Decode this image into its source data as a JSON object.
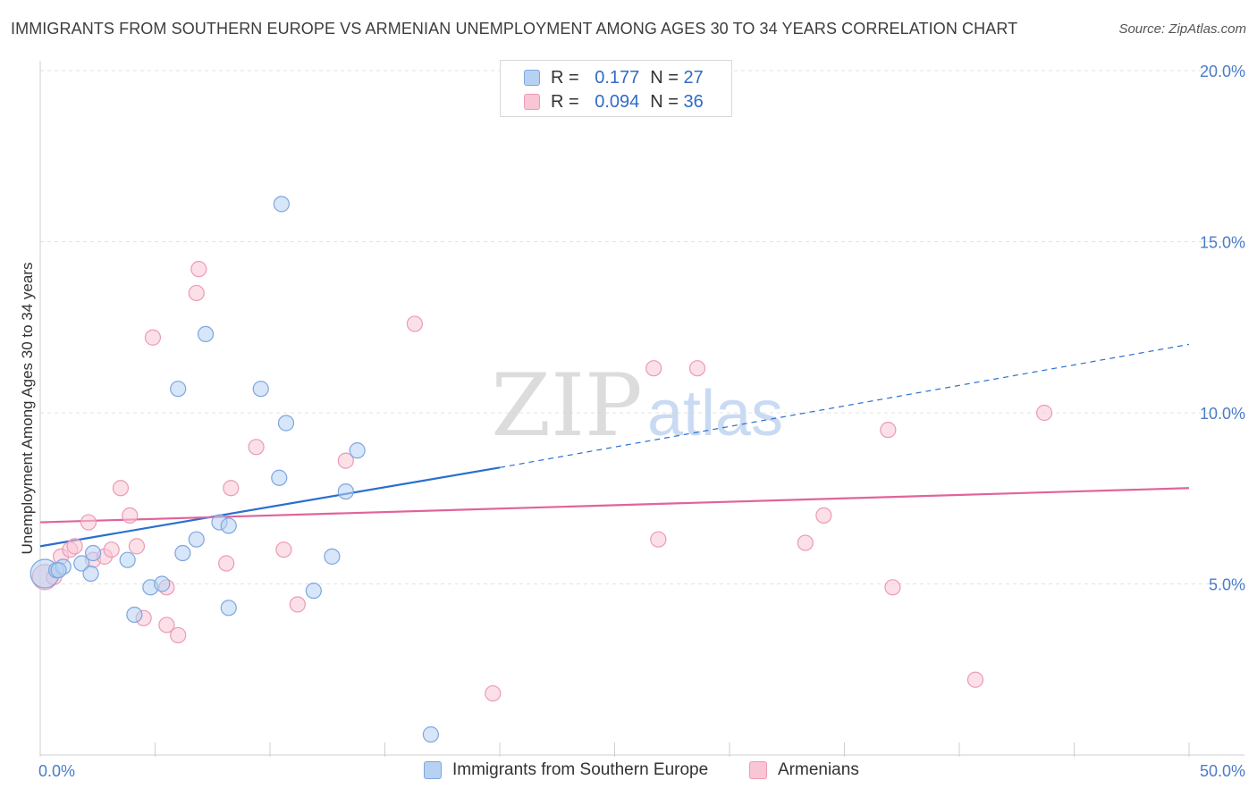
{
  "title": "IMMIGRANTS FROM SOUTHERN EUROPE VS ARMENIAN UNEMPLOYMENT AMONG AGES 30 TO 34 YEARS CORRELATION CHART",
  "source": "Source: ZipAtlas.com",
  "watermark": {
    "zip": "ZIP",
    "atlas": "atlas"
  },
  "legend": {
    "rows": [
      {
        "r_label": "R =",
        "r_value": "0.177",
        "n_label": "N =",
        "n_value": "27"
      },
      {
        "r_label": "R =",
        "r_value": "0.094",
        "n_label": "N =",
        "n_value": "36"
      }
    ]
  },
  "bottom_legend": {
    "series1": "Immigrants from Southern Europe",
    "series2": "Armenians"
  },
  "colors": {
    "blue_fill": "#b7d1f3",
    "blue_stroke": "#7da6e0",
    "blue_line": "#2a6fcf",
    "pink_fill": "#f9c6d6",
    "pink_stroke": "#ec9ab5",
    "pink_line": "#e0649a",
    "tick_text": "#4a7cc9"
  },
  "chart_data": {
    "type": "scatter",
    "title": "IMMIGRANTS FROM SOUTHERN EUROPE VS ARMENIAN UNEMPLOYMENT AMONG AGES 30 TO 34 YEARS CORRELATION CHART",
    "xlabel": "",
    "ylabel": "Unemployment Among Ages 30 to 34 years",
    "xlim": [
      0,
      50
    ],
    "ylim": [
      0,
      20
    ],
    "x_tick_labels": [
      "0.0%",
      "50.0%"
    ],
    "y_ticks": [
      5,
      10,
      15,
      20
    ],
    "y_tick_labels": [
      "5.0%",
      "10.0%",
      "15.0%",
      "20.0%"
    ],
    "series": [
      {
        "name": "Immigrants from Southern Europe",
        "R": 0.177,
        "N": 27,
        "points": [
          [
            0.2,
            5.3
          ],
          [
            0.7,
            5.4
          ],
          [
            1.0,
            5.5
          ],
          [
            1.8,
            5.6
          ],
          [
            2.2,
            5.3
          ],
          [
            2.3,
            5.9
          ],
          [
            3.8,
            5.7
          ],
          [
            4.1,
            4.1
          ],
          [
            4.8,
            4.9
          ],
          [
            5.3,
            5.0
          ],
          [
            6.0,
            10.7
          ],
          [
            6.2,
            5.9
          ],
          [
            6.8,
            6.3
          ],
          [
            7.2,
            12.3
          ],
          [
            7.8,
            6.8
          ],
          [
            8.2,
            6.7
          ],
          [
            8.2,
            4.3
          ],
          [
            9.6,
            10.7
          ],
          [
            10.5,
            16.1
          ],
          [
            10.7,
            9.7
          ],
          [
            10.4,
            8.1
          ],
          [
            11.9,
            4.8
          ],
          [
            12.7,
            5.8
          ],
          [
            13.3,
            7.7
          ],
          [
            13.8,
            8.9
          ],
          [
            17.0,
            0.6
          ],
          [
            0.8,
            5.4
          ]
        ],
        "trend": {
          "x_start": 0,
          "y_start": 6.1,
          "x_solid_end": 20,
          "y_solid_end": 8.4,
          "x_end": 50,
          "y_end": 12.0
        }
      },
      {
        "name": "Armenians",
        "R": 0.094,
        "N": 36,
        "points": [
          [
            0.2,
            5.2
          ],
          [
            0.6,
            5.2
          ],
          [
            0.9,
            5.8
          ],
          [
            1.3,
            6.0
          ],
          [
            1.5,
            6.1
          ],
          [
            2.1,
            6.8
          ],
          [
            2.3,
            5.7
          ],
          [
            2.8,
            5.8
          ],
          [
            3.1,
            6.0
          ],
          [
            3.5,
            7.8
          ],
          [
            3.9,
            7.0
          ],
          [
            4.2,
            6.1
          ],
          [
            4.5,
            4.0
          ],
          [
            4.9,
            12.2
          ],
          [
            5.5,
            4.9
          ],
          [
            5.5,
            3.8
          ],
          [
            6.0,
            3.5
          ],
          [
            6.8,
            13.5
          ],
          [
            6.9,
            14.2
          ],
          [
            8.1,
            5.6
          ],
          [
            8.3,
            7.8
          ],
          [
            9.4,
            9.0
          ],
          [
            10.6,
            6.0
          ],
          [
            11.2,
            4.4
          ],
          [
            13.3,
            8.6
          ],
          [
            16.3,
            12.6
          ],
          [
            19.7,
            1.8
          ],
          [
            26.7,
            11.3
          ],
          [
            26.9,
            6.3
          ],
          [
            28.6,
            11.3
          ],
          [
            33.3,
            6.2
          ],
          [
            34.1,
            7.0
          ],
          [
            36.9,
            9.5
          ],
          [
            37.1,
            4.9
          ],
          [
            40.7,
            2.2
          ],
          [
            43.7,
            10.0
          ]
        ],
        "trend": {
          "x_start": 0,
          "y_start": 6.8,
          "x_end": 50,
          "y_end": 7.8
        }
      }
    ]
  }
}
